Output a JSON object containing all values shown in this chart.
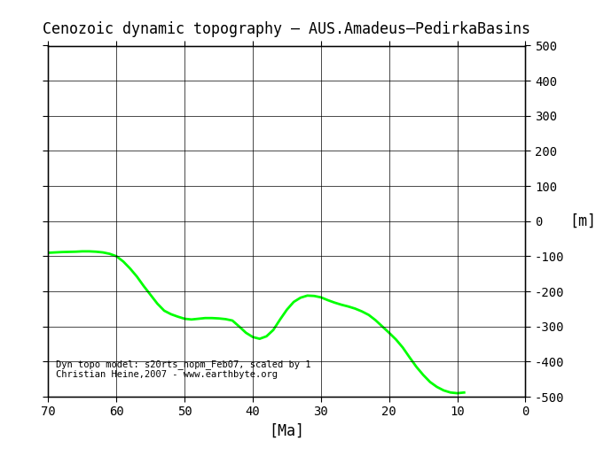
{
  "title": "Cenozoic dynamic topography – AUS.Amadeus–PedirkaBasins",
  "xlabel": "[Ma]",
  "ylabel": "[m]",
  "xlim": [
    70,
    0
  ],
  "ylim": [
    -500,
    500
  ],
  "yticks": [
    -500,
    -400,
    -300,
    -200,
    -100,
    0,
    100,
    200,
    300,
    400,
    500
  ],
  "xticks": [
    70,
    60,
    50,
    40,
    30,
    20,
    10,
    0
  ],
  "line_color": "#00ff00",
  "line_width": 2.0,
  "annotation": "Dyn topo model: s20rts_nopm_Feb07, scaled by 1\nChristian Heine,2007 - www.earthbyte.org",
  "annotation_fontsize": 7.5,
  "x": [
    70,
    68,
    66,
    65,
    64,
    63,
    62,
    61,
    60,
    59,
    58,
    57,
    56,
    55,
    54,
    53,
    52,
    51,
    50,
    49,
    48,
    47,
    46,
    45,
    44,
    43,
    42,
    41,
    40,
    39,
    38,
    37,
    36,
    35,
    34,
    33,
    32,
    31,
    30,
    29,
    28,
    27,
    26,
    25,
    24,
    23,
    22,
    21,
    20,
    19,
    18,
    17,
    16,
    15,
    14,
    13,
    12,
    11,
    10,
    9
  ],
  "y": [
    -90,
    -88,
    -87,
    -86,
    -86,
    -87,
    -89,
    -93,
    -100,
    -115,
    -135,
    -158,
    -185,
    -210,
    -235,
    -255,
    -265,
    -272,
    -278,
    -280,
    -278,
    -276,
    -276,
    -277,
    -279,
    -283,
    -300,
    -318,
    -330,
    -335,
    -328,
    -310,
    -280,
    -252,
    -230,
    -218,
    -212,
    -213,
    -217,
    -225,
    -232,
    -238,
    -243,
    -249,
    -257,
    -267,
    -282,
    -300,
    -318,
    -337,
    -360,
    -388,
    -415,
    -438,
    -458,
    -472,
    -482,
    -488,
    -490,
    -488
  ]
}
